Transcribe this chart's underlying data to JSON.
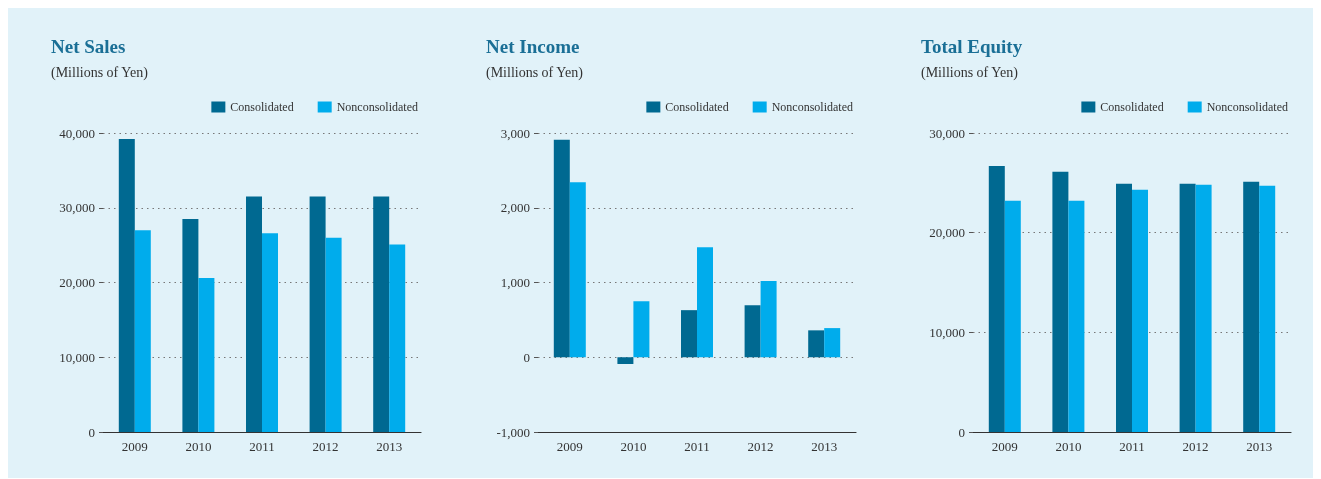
{
  "chart_data": [
    {
      "type": "bar",
      "title": "Net Sales",
      "subtitle": "(Millions of Yen)",
      "categories": [
        "2009",
        "2010",
        "2011",
        "2012",
        "2013"
      ],
      "series": [
        {
          "name": "Consolidated",
          "color": "#006991",
          "values": [
            39200,
            28500,
            31500,
            31500,
            31500
          ]
        },
        {
          "name": "Nonconsolidated",
          "color": "#00acec",
          "values": [
            27000,
            20600,
            26600,
            26000,
            25100
          ]
        }
      ],
      "ylim": [
        0,
        40000
      ],
      "yticks": [
        {
          "value": 0,
          "label": "0"
        },
        {
          "value": 10000,
          "label": "10,000"
        },
        {
          "value": 20000,
          "label": "20,000"
        },
        {
          "value": 30000,
          "label": "30,000"
        },
        {
          "value": 40000,
          "label": "40,000"
        }
      ],
      "grid": "y",
      "legend": "top right"
    },
    {
      "type": "bar",
      "title": "Net Income",
      "subtitle": "(Millions of Yen)",
      "categories": [
        "2009",
        "2010",
        "2011",
        "2012",
        "2013"
      ],
      "series": [
        {
          "name": "Consolidated",
          "color": "#006991",
          "values": [
            2910,
            -90,
            630,
            695,
            360
          ]
        },
        {
          "name": "Nonconsolidated",
          "color": "#00acec",
          "values": [
            2340,
            750,
            1470,
            1020,
            390
          ]
        }
      ],
      "ylim": [
        -1000,
        3000
      ],
      "yticks": [
        {
          "value": -1000,
          "label": "-1,000"
        },
        {
          "value": 0,
          "label": "0"
        },
        {
          "value": 1000,
          "label": "1,000"
        },
        {
          "value": 2000,
          "label": "2,000"
        },
        {
          "value": 3000,
          "label": "3,000"
        }
      ],
      "grid": "y",
      "legend": "top right"
    },
    {
      "type": "bar",
      "title": "Total Equity",
      "subtitle": "(Millions of Yen)",
      "categories": [
        "2009",
        "2010",
        "2011",
        "2012",
        "2013"
      ],
      "series": [
        {
          "name": "Consolidated",
          "color": "#006991",
          "values": [
            26700,
            26100,
            24900,
            24900,
            25100
          ]
        },
        {
          "name": "Nonconsolidated",
          "color": "#00acec",
          "values": [
            23200,
            23200,
            24300,
            24800,
            24700
          ]
        }
      ],
      "ylim": [
        0,
        30000
      ],
      "yticks": [
        {
          "value": 0,
          "label": "0"
        },
        {
          "value": 10000,
          "label": "10,000"
        },
        {
          "value": 20000,
          "label": "20,000"
        },
        {
          "value": 30000,
          "label": "30,000"
        }
      ],
      "grid": "y",
      "legend": "top right"
    }
  ]
}
